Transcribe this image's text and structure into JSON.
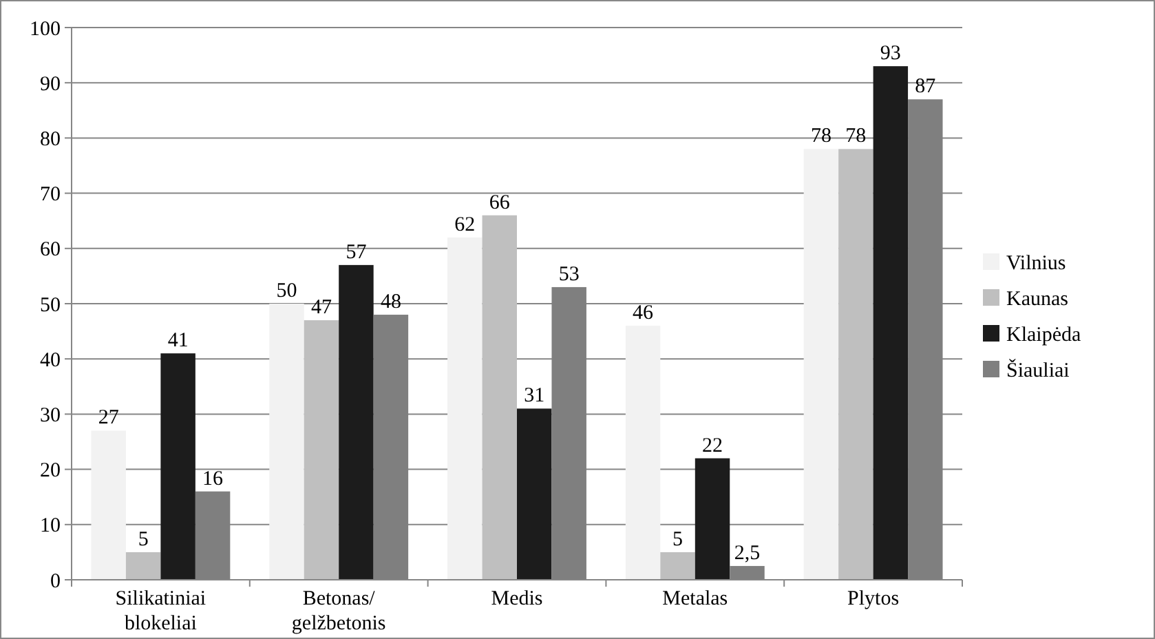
{
  "chart_data": {
    "type": "bar",
    "categories": [
      "Silikatiniai blokeliai",
      "Betonas/gelžbetonis",
      "Medis",
      "Metalas",
      "Plytos"
    ],
    "series": [
      {
        "name": "Vilnius",
        "color": "#f2f2f2",
        "values": [
          27,
          50,
          62,
          46,
          78
        ],
        "value_labels": [
          "27",
          "50",
          "62",
          "46",
          "78"
        ]
      },
      {
        "name": "Kaunas",
        "color": "#bfbfbf",
        "values": [
          5,
          47,
          66,
          5,
          78
        ],
        "value_labels": [
          "5",
          "47",
          "66",
          "5",
          "78"
        ]
      },
      {
        "name": "Klaipėda",
        "color": "#1c1c1c",
        "values": [
          41,
          57,
          31,
          22,
          93
        ],
        "value_labels": [
          "41",
          "57",
          "31",
          "22",
          "93"
        ]
      },
      {
        "name": "Šiauliai",
        "color": "#7f7f7f",
        "values": [
          16,
          48,
          53,
          2.5,
          87
        ],
        "value_labels": [
          "16",
          "48",
          "53",
          "2,5",
          "87"
        ]
      }
    ],
    "ylim": [
      0,
      100
    ],
    "yticks": [
      0,
      10,
      20,
      30,
      40,
      50,
      60,
      70,
      80,
      90,
      100
    ],
    "grid": "y",
    "legend": "right"
  }
}
